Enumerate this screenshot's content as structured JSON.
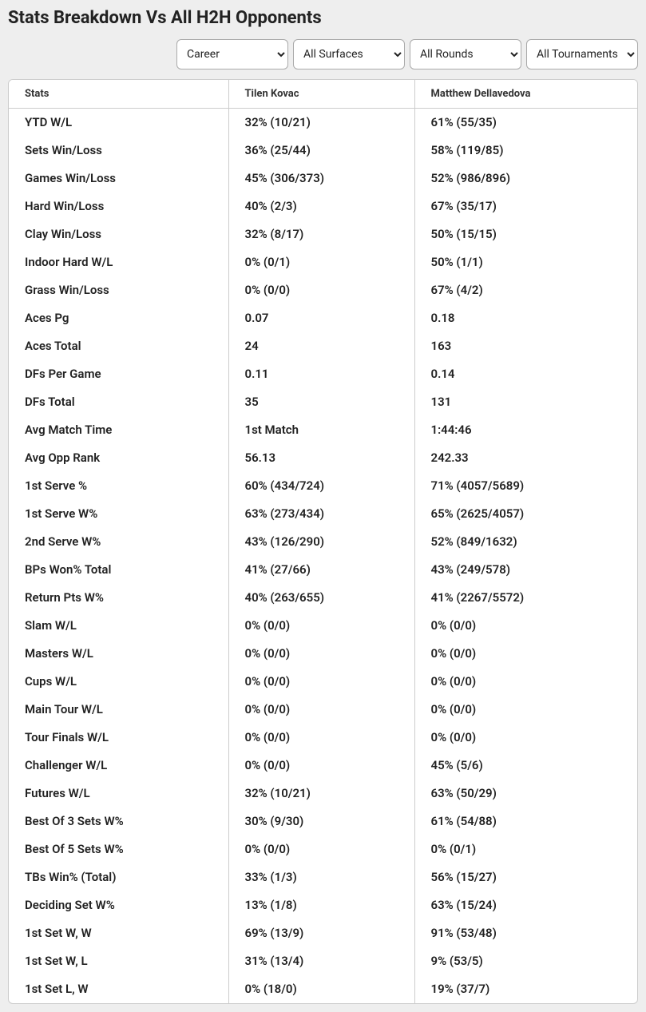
{
  "title": "Stats Breakdown Vs All H2H Opponents",
  "filters": {
    "period": "Career",
    "surface": "All Surfaces",
    "round": "All Rounds",
    "tournament": "All Tournaments"
  },
  "columns": {
    "stats_label": "Stats",
    "player1": "Tilen Kovac",
    "player2": "Matthew Dellavedova"
  },
  "rows": [
    {
      "stat": "YTD W/L",
      "p1": "32% (10/21)",
      "p2": "61% (55/35)"
    },
    {
      "stat": "Sets Win/Loss",
      "p1": "36% (25/44)",
      "p2": "58% (119/85)"
    },
    {
      "stat": "Games Win/Loss",
      "p1": "45% (306/373)",
      "p2": "52% (986/896)"
    },
    {
      "stat": "Hard Win/Loss",
      "p1": "40% (2/3)",
      "p2": "67% (35/17)"
    },
    {
      "stat": "Clay Win/Loss",
      "p1": "32% (8/17)",
      "p2": "50% (15/15)"
    },
    {
      "stat": "Indoor Hard W/L",
      "p1": "0% (0/1)",
      "p2": "50% (1/1)"
    },
    {
      "stat": "Grass Win/Loss",
      "p1": "0% (0/0)",
      "p2": "67% (4/2)"
    },
    {
      "stat": "Aces Pg",
      "p1": "0.07",
      "p2": "0.18"
    },
    {
      "stat": "Aces Total",
      "p1": "24",
      "p2": "163"
    },
    {
      "stat": "DFs Per Game",
      "p1": "0.11",
      "p2": "0.14"
    },
    {
      "stat": "DFs Total",
      "p1": "35",
      "p2": "131"
    },
    {
      "stat": "Avg Match Time",
      "p1": "1st Match",
      "p2": "1:44:46"
    },
    {
      "stat": "Avg Opp Rank",
      "p1": "56.13",
      "p2": "242.33"
    },
    {
      "stat": "1st Serve %",
      "p1": "60% (434/724)",
      "p2": "71% (4057/5689)"
    },
    {
      "stat": "1st Serve W%",
      "p1": "63% (273/434)",
      "p2": "65% (2625/4057)"
    },
    {
      "stat": "2nd Serve W%",
      "p1": "43% (126/290)",
      "p2": "52% (849/1632)"
    },
    {
      "stat": "BPs Won% Total",
      "p1": "41% (27/66)",
      "p2": "43% (249/578)"
    },
    {
      "stat": "Return Pts W%",
      "p1": "40% (263/655)",
      "p2": "41% (2267/5572)"
    },
    {
      "stat": "Slam W/L",
      "p1": "0% (0/0)",
      "p2": "0% (0/0)"
    },
    {
      "stat": "Masters W/L",
      "p1": "0% (0/0)",
      "p2": "0% (0/0)"
    },
    {
      "stat": "Cups W/L",
      "p1": "0% (0/0)",
      "p2": "0% (0/0)"
    },
    {
      "stat": "Main Tour W/L",
      "p1": "0% (0/0)",
      "p2": "0% (0/0)"
    },
    {
      "stat": "Tour Finals W/L",
      "p1": "0% (0/0)",
      "p2": "0% (0/0)"
    },
    {
      "stat": "Challenger W/L",
      "p1": "0% (0/0)",
      "p2": "45% (5/6)"
    },
    {
      "stat": "Futures W/L",
      "p1": "32% (10/21)",
      "p2": "63% (50/29)"
    },
    {
      "stat": "Best Of 3 Sets W%",
      "p1": "30% (9/30)",
      "p2": "61% (54/88)"
    },
    {
      "stat": "Best Of 5 Sets W%",
      "p1": "0% (0/0)",
      "p2": "0% (0/1)"
    },
    {
      "stat": "TBs Win% (Total)",
      "p1": "33% (1/3)",
      "p2": "56% (15/27)"
    },
    {
      "stat": "Deciding Set W%",
      "p1": "13% (1/8)",
      "p2": "63% (15/24)"
    },
    {
      "stat": "1st Set W, W",
      "p1": "69% (13/9)",
      "p2": "91% (53/48)"
    },
    {
      "stat": "1st Set W, L",
      "p1": "31% (13/4)",
      "p2": "9% (53/5)"
    },
    {
      "stat": "1st Set L, W",
      "p1": "0% (18/0)",
      "p2": "19% (37/7)"
    }
  ]
}
